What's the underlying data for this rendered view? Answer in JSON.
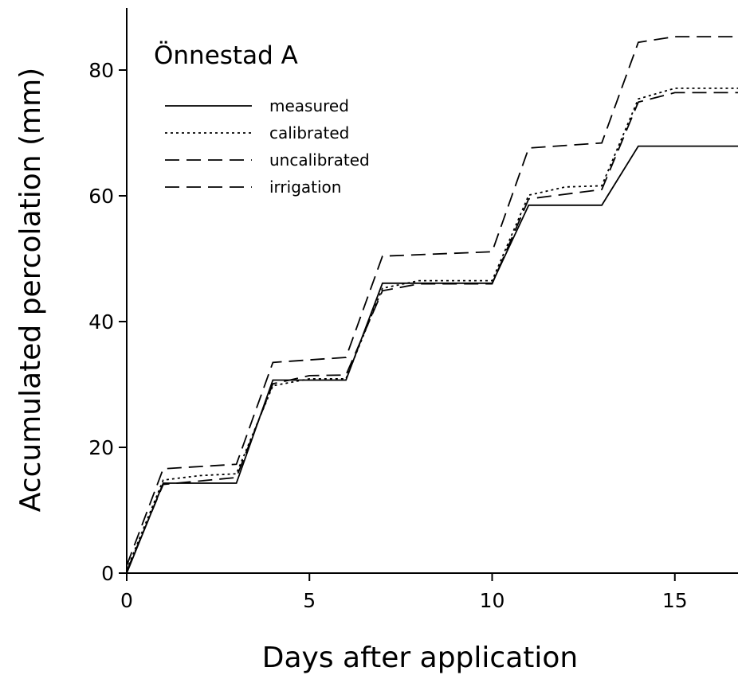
{
  "chart_data": {
    "type": "line",
    "title": "Önnestad A",
    "xlabel": "Days after application",
    "ylabel": "Accumulated percolation (mm)",
    "xlim": [
      0,
      17
    ],
    "ylim": [
      0,
      90
    ],
    "xticks": [
      0,
      5,
      10,
      15
    ],
    "yticks": [
      0,
      20,
      40,
      60,
      80
    ],
    "legend_position": "top-left",
    "grid": false,
    "series": [
      {
        "name": "measured",
        "style": "solid",
        "x": [
          0,
          1,
          3,
          4,
          6,
          7,
          10,
          11,
          13,
          14,
          17
        ],
        "y": [
          0,
          14.3,
          14.3,
          30.7,
          30.7,
          46.1,
          46.1,
          58.5,
          58.5,
          67.9,
          67.9
        ]
      },
      {
        "name": "calibrated",
        "style": "dotted",
        "x": [
          0,
          1,
          2,
          3,
          4,
          5,
          6,
          7,
          8,
          10,
          11,
          12,
          13,
          14,
          15,
          17
        ],
        "y": [
          0.5,
          14.8,
          15.5,
          15.8,
          29.8,
          30.9,
          30.9,
          45.3,
          46.5,
          46.5,
          60.1,
          61.4,
          61.6,
          75.4,
          77.1,
          77.1
        ]
      },
      {
        "name": "uncalibrated",
        "style": "dashed",
        "x": [
          0,
          1,
          3,
          4,
          6,
          7,
          10,
          11,
          13,
          14,
          15,
          17
        ],
        "y": [
          1.2,
          16.6,
          17.3,
          33.5,
          34.3,
          50.4,
          51.1,
          67.6,
          68.4,
          84.4,
          85.3,
          85.3
        ]
      },
      {
        "name": "irrigation",
        "style": "dash-dot",
        "x": [
          0,
          1,
          3,
          4,
          5,
          6,
          7,
          8,
          10,
          11,
          13,
          14,
          15,
          17
        ],
        "y": [
          0.3,
          14.1,
          15.2,
          30.1,
          31.4,
          31.5,
          44.9,
          46.0,
          46.0,
          59.5,
          61.0,
          74.9,
          76.4,
          76.4
        ]
      }
    ]
  }
}
